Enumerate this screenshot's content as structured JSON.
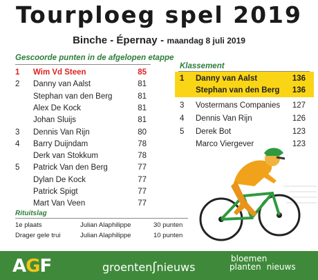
{
  "title": "Tourploeg spel 2019",
  "stage": {
    "route": "Binche - Épernay",
    "separator": "-",
    "date": "maandag 8 juli 2019"
  },
  "left": {
    "heading": "Gescoorde punten in de afgelopen etappe",
    "rows": [
      {
        "rank": "1",
        "name": "Wim Vd Steen",
        "points": "85"
      },
      {
        "rank": "2",
        "name": "Danny van Aalst",
        "points": "81"
      },
      {
        "rank": "",
        "name": "Stephan van den Berg",
        "points": "81"
      },
      {
        "rank": "",
        "name": "Alex De Kock",
        "points": "81"
      },
      {
        "rank": "",
        "name": "Johan Sluijs",
        "points": "81"
      },
      {
        "rank": "3",
        "name": "Dennis Van Rijn",
        "points": "80"
      },
      {
        "rank": "4",
        "name": "Barry Duijndam",
        "points": "78"
      },
      {
        "rank": "",
        "name": "Derk van Stokkum",
        "points": "78"
      },
      {
        "rank": "5",
        "name": "Patrick Van den Berg",
        "points": "77"
      },
      {
        "rank": "",
        "name": "Dylan De Kock",
        "points": "77"
      },
      {
        "rank": "",
        "name": "Patrick Spigt",
        "points": "77"
      },
      {
        "rank": "",
        "name": "Mart Van Veen",
        "points": "77"
      }
    ]
  },
  "right": {
    "heading": "Klassement",
    "rows": [
      {
        "rank": "1",
        "name": "Danny van Aalst",
        "points": "136"
      },
      {
        "rank": "",
        "name": "Stephan van den Berg",
        "points": "136"
      },
      {
        "rank": "3",
        "name": "Vostermans Companies",
        "points": "127"
      },
      {
        "rank": "4",
        "name": "Dennis Van Rijn",
        "points": "126"
      },
      {
        "rank": "5",
        "name": "Derek Bot",
        "points": "123"
      },
      {
        "rank": "",
        "name": "Marco Viergever",
        "points": "123"
      }
    ]
  },
  "ritwinst": {
    "heading": "Rituitslag",
    "rows": [
      {
        "label": "1e plaats",
        "rider": "Julian Alaphilippe",
        "points": "30 punten"
      },
      {
        "label": "Drager gele trui",
        "rider": "Julian Alaphilippe",
        "points": "10 punten"
      }
    ]
  },
  "footer": {
    "agf_a": "A",
    "agf_g": "G",
    "agf_f": "F",
    "groenten_1": "groenten",
    "groenten_2": "nieuws",
    "bloemen_1": "bloemen",
    "bloemen_2": "planten",
    "bloemen_3": "nieuws"
  },
  "colors": {
    "highlight": "#fad516",
    "accent_green": "#2e7d3a",
    "footer_green": "#3f8a3a",
    "leader_red": "#dd2222"
  },
  "icons": [
    "cyclist-illustration"
  ]
}
